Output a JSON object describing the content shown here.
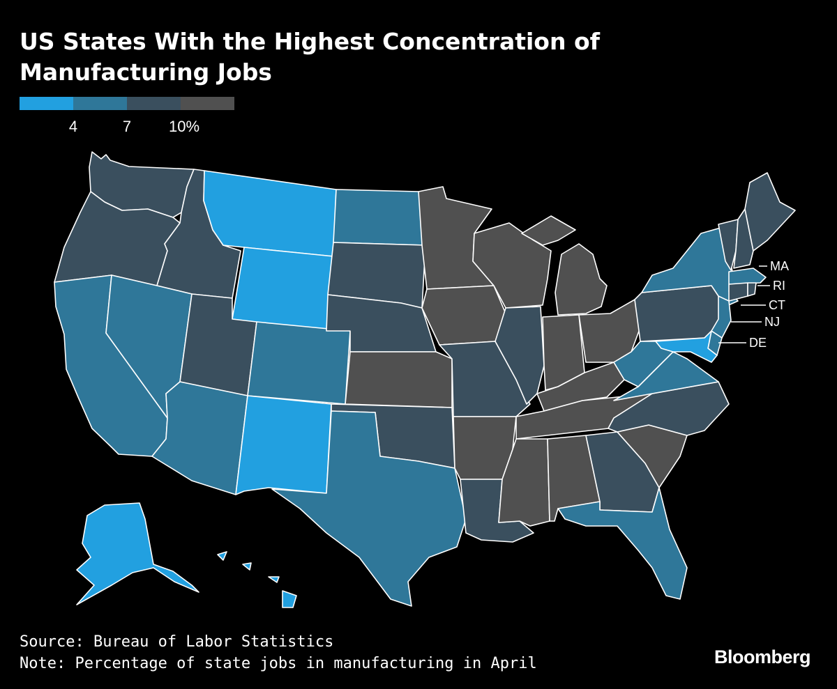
{
  "title": "US States With the Highest Concentration of Manufacturing Jobs",
  "legend": {
    "colors": [
      "#22a0e0",
      "#2f7799",
      "#3a4f5e",
      "#505050"
    ],
    "ticks": [
      "4",
      "7",
      "10%"
    ]
  },
  "callouts": [
    "MA",
    "RI",
    "CT",
    "NJ",
    "DE"
  ],
  "source": "Source: Bureau of Labor Statistics",
  "note": "Note: Percentage of state jobs in manufacturing in April",
  "brand": "Bloomberg",
  "states": [
    {
      "id": "WA",
      "bin": 2
    },
    {
      "id": "OR",
      "bin": 2
    },
    {
      "id": "CA",
      "bin": 1
    },
    {
      "id": "ID",
      "bin": 2
    },
    {
      "id": "NV",
      "bin": 1
    },
    {
      "id": "MT",
      "bin": 0
    },
    {
      "id": "WY",
      "bin": 0
    },
    {
      "id": "UT",
      "bin": 2
    },
    {
      "id": "AZ",
      "bin": 1
    },
    {
      "id": "CO",
      "bin": 1
    },
    {
      "id": "NM",
      "bin": 0
    },
    {
      "id": "ND",
      "bin": 1
    },
    {
      "id": "SD",
      "bin": 2
    },
    {
      "id": "NE",
      "bin": 2
    },
    {
      "id": "KS",
      "bin": 3
    },
    {
      "id": "OK",
      "bin": 2
    },
    {
      "id": "TX",
      "bin": 1
    },
    {
      "id": "MN",
      "bin": 3
    },
    {
      "id": "IA",
      "bin": 3
    },
    {
      "id": "MO",
      "bin": 2
    },
    {
      "id": "AR",
      "bin": 3
    },
    {
      "id": "LA",
      "bin": 2
    },
    {
      "id": "WI",
      "bin": 3
    },
    {
      "id": "IL",
      "bin": 2
    },
    {
      "id": "MI",
      "bin": 3
    },
    {
      "id": "IN",
      "bin": 3
    },
    {
      "id": "OH",
      "bin": 3
    },
    {
      "id": "KY",
      "bin": 3
    },
    {
      "id": "TN",
      "bin": 3
    },
    {
      "id": "MS",
      "bin": 3
    },
    {
      "id": "AL",
      "bin": 3
    },
    {
      "id": "GA",
      "bin": 2
    },
    {
      "id": "FL",
      "bin": 1
    },
    {
      "id": "SC",
      "bin": 3
    },
    {
      "id": "NC",
      "bin": 2
    },
    {
      "id": "VA",
      "bin": 1
    },
    {
      "id": "WV",
      "bin": 1
    },
    {
      "id": "PA",
      "bin": 2
    },
    {
      "id": "NY",
      "bin": 1
    },
    {
      "id": "VT",
      "bin": 2
    },
    {
      "id": "NH",
      "bin": 2
    },
    {
      "id": "ME",
      "bin": 2
    },
    {
      "id": "MA",
      "bin": 1
    },
    {
      "id": "RI",
      "bin": 2
    },
    {
      "id": "CT",
      "bin": 2
    },
    {
      "id": "NJ",
      "bin": 1
    },
    {
      "id": "DE",
      "bin": 1
    },
    {
      "id": "MD",
      "bin": 0
    },
    {
      "id": "AK",
      "bin": 0
    },
    {
      "id": "HI",
      "bin": 0
    }
  ]
}
